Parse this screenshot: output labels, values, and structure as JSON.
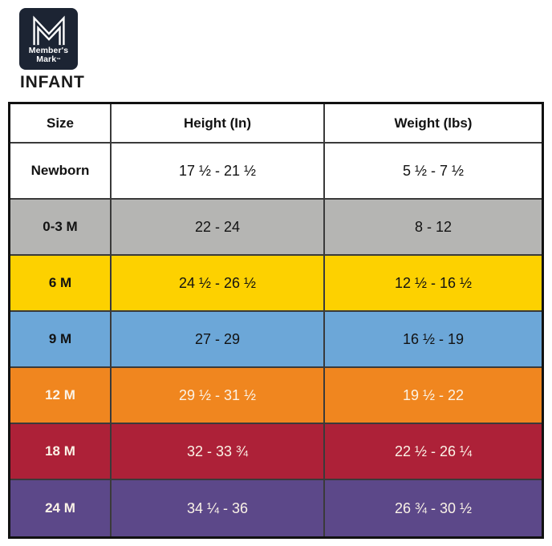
{
  "brand": {
    "logo_line1": "Member's",
    "logo_line2": "Mark",
    "trademark": "™",
    "navy": "#1C2433"
  },
  "colors": {
    "table_border": "#111111",
    "grid_line": "#3A3A3A",
    "dark_text": "#121212",
    "light_text": "#FBF3E7"
  },
  "chart_data": {
    "type": "table",
    "title": "INFANT",
    "columns": [
      "Size",
      "Height (In)",
      "Weight (lbs)"
    ],
    "rows": [
      {
        "size": "Newborn",
        "height": "17 ½ - 21 ½",
        "weight": "5 ½ - 7 ½",
        "bg": "#FFFFFF",
        "fg": "#121212"
      },
      {
        "size": "0-3 M",
        "height": "22 - 24",
        "weight": "8 - 12",
        "bg": "#B5B5B3",
        "fg": "#121212"
      },
      {
        "size": "6 M",
        "height": "24 ½ - 26 ½",
        "weight": "12 ½ - 16 ½",
        "bg": "#FDD100",
        "fg": "#121212"
      },
      {
        "size": "9 M",
        "height": "27 - 29",
        "weight": "16 ½ - 19",
        "bg": "#6CA7D8",
        "fg": "#121212"
      },
      {
        "size": "12 M",
        "height": "29 ½ - 31 ½",
        "weight": "19 ½ - 22",
        "bg": "#F0861F",
        "fg": "#FBF3E7"
      },
      {
        "size": "18 M",
        "height": "32 - 33 ¾",
        "weight": "22 ½ - 26 ¼",
        "bg": "#AD2138",
        "fg": "#FBF3E7"
      },
      {
        "size": "24 M",
        "height": "34 ¼ - 36",
        "weight": "26 ¾ - 30 ½",
        "bg": "#5C4889",
        "fg": "#FBF3E7"
      }
    ]
  }
}
